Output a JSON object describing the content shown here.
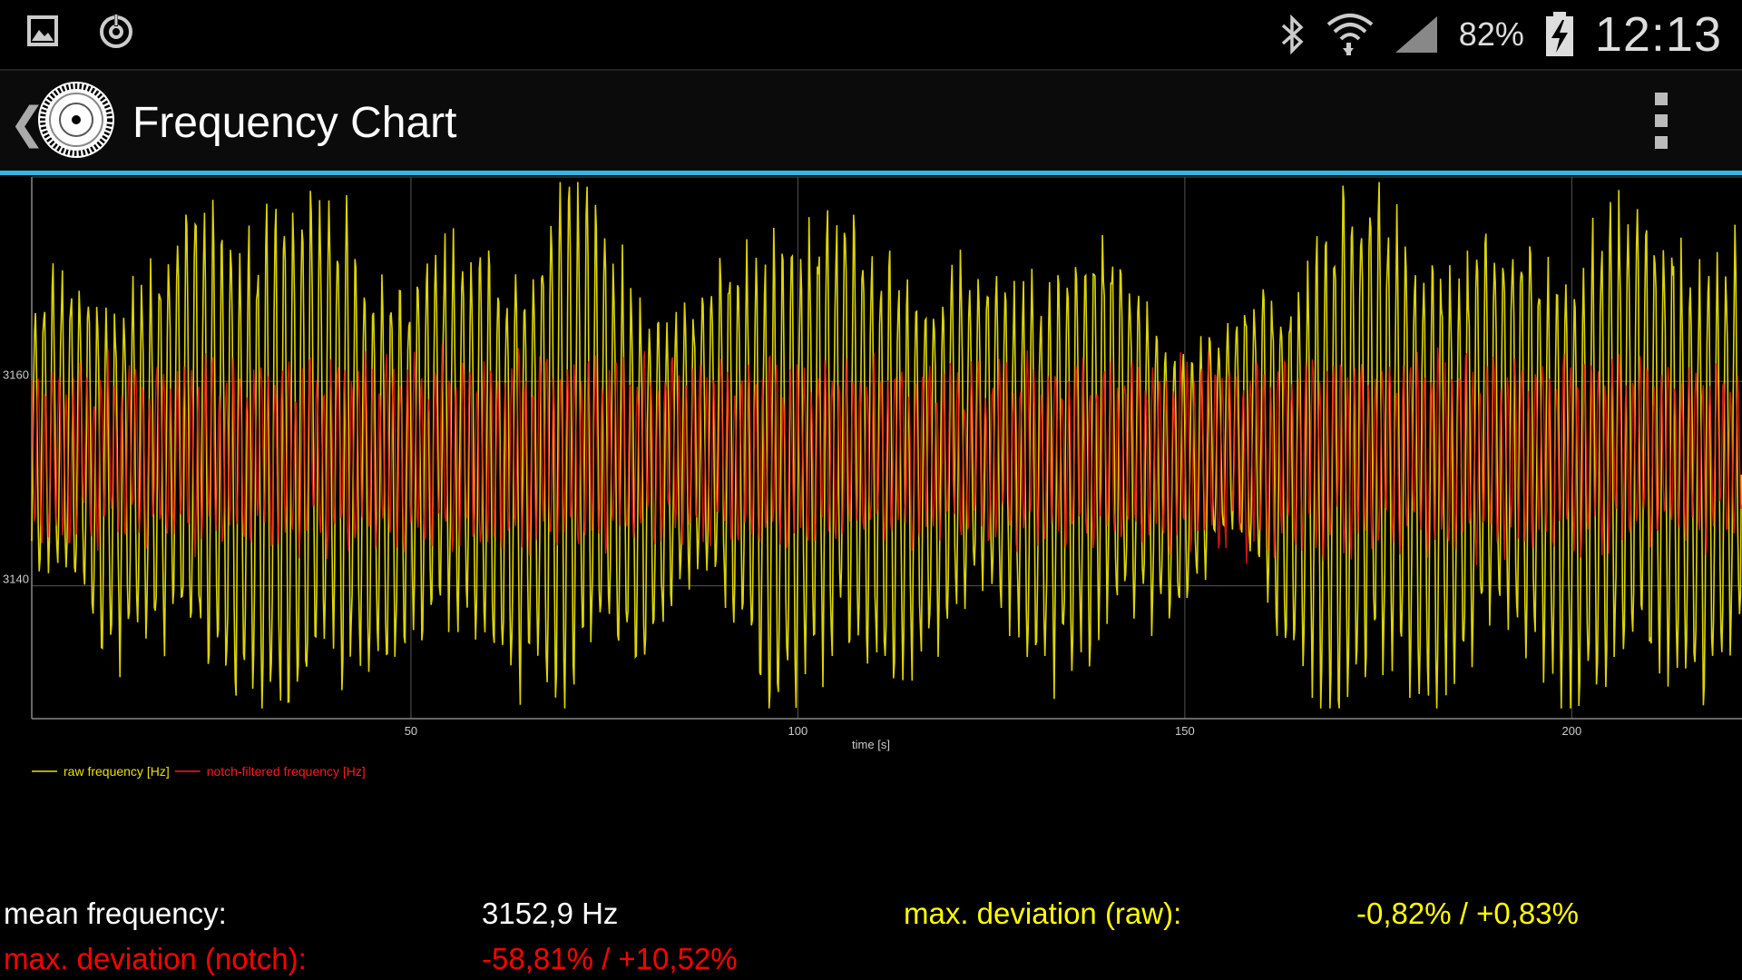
{
  "status_bar": {
    "battery_percent": "82%",
    "clock": "12:13",
    "icons": [
      "gallery-icon",
      "power-save-icon",
      "bluetooth-icon",
      "wifi-icon",
      "signal-icon",
      "battery-charging-icon"
    ]
  },
  "action_bar": {
    "title": "Frequency Chart",
    "back_glyph": "❮",
    "icons": [
      "app-dial-icon",
      "overflow-menu-icon"
    ],
    "accent": "#33b5e5"
  },
  "chart_data": {
    "type": "line",
    "xlabel": "time [s]",
    "xticks": [
      "50",
      "100",
      "150",
      "200"
    ],
    "yticks": [
      "3140",
      "3160"
    ],
    "xlim": [
      1,
      222
    ],
    "ylim": [
      3127,
      3180
    ],
    "grid": true,
    "legend_position": "bottom-left",
    "series": [
      {
        "name": "raw frequency [Hz]",
        "color": "#e8e000",
        "envelope": [
          [
            1,
            14
          ],
          [
            18,
            20
          ],
          [
            35,
            26
          ],
          [
            50,
            18
          ],
          [
            64,
            20
          ],
          [
            69,
            26
          ],
          [
            86,
            13
          ],
          [
            97,
            23
          ],
          [
            105,
            22
          ],
          [
            125,
            16
          ],
          [
            136,
            22
          ],
          [
            155,
            10
          ],
          [
            170,
            25
          ],
          [
            190,
            19
          ],
          [
            208,
            24
          ],
          [
            222,
            20
          ]
        ],
        "mean": 3152.9,
        "period_s": 1.15
      },
      {
        "name": "notch-filtered frequency [Hz]",
        "color": "#ff1a1a",
        "envelope": [
          [
            1,
            8
          ],
          [
            60,
            9
          ],
          [
            120,
            8
          ],
          [
            180,
            9
          ],
          [
            222,
            8
          ]
        ],
        "mean": 3152.9,
        "period_s": 0.9
      }
    ]
  },
  "stats": {
    "mean_label": "mean frequency:",
    "mean_value": "3152,9 Hz",
    "raw_label": "max. deviation (raw):",
    "raw_value": "-0,82% / +0,83%",
    "notch_label": "max. deviation (notch):",
    "notch_value": "-58,81% / +10,52%"
  }
}
